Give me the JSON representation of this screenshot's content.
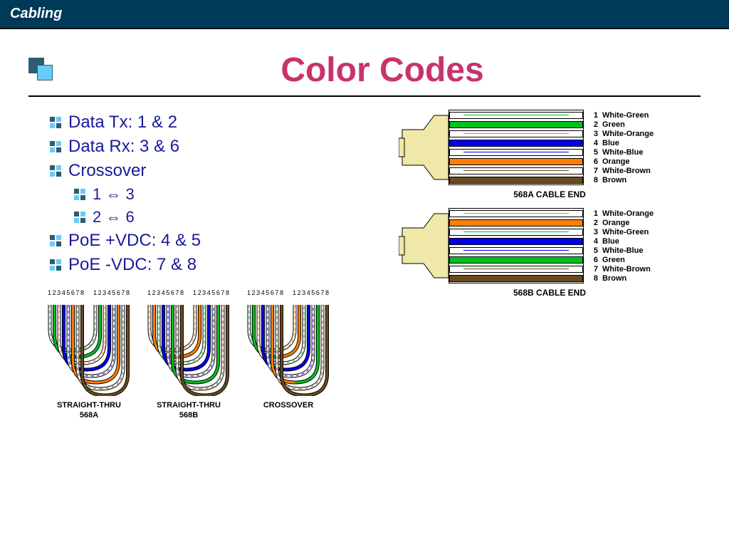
{
  "header": {
    "title": "Cabling",
    "bg": "#003a59",
    "fg": "#ffffff"
  },
  "title": {
    "text": "Color Codes",
    "color": "#c8336b"
  },
  "bullets": {
    "main": [
      {
        "text": "Data Tx: 1 & 2"
      },
      {
        "text": "Data Rx: 3 & 6"
      },
      {
        "text": "Crossover"
      },
      {
        "text": "PoE +VDC: 4 & 5"
      },
      {
        "text": "PoE  -VDC: 7 & 8"
      }
    ],
    "crossover_sub": [
      {
        "text": "1 ⇔ 3"
      },
      {
        "text": "2 ⇔ 6"
      }
    ],
    "text_color": "#1a1a99"
  },
  "colors": {
    "white": "#ffffff",
    "green": "#00c020",
    "orange": "#ff8000",
    "blue": "#0000ee",
    "brown": "#6b4a1f",
    "connector_body": "#f0e8a8",
    "black": "#000000"
  },
  "cable_568a": {
    "caption": "568A CABLE END",
    "wires": [
      {
        "num": "1",
        "label": "White-Green",
        "base": "#ffffff",
        "stripe": "#00c020"
      },
      {
        "num": "2",
        "label": "Green",
        "base": "#00c020"
      },
      {
        "num": "3",
        "label": "White-Orange",
        "base": "#ffffff",
        "stripe": "#ff8000"
      },
      {
        "num": "4",
        "label": "Blue",
        "base": "#0000ee"
      },
      {
        "num": "5",
        "label": "White-Blue",
        "base": "#ffffff",
        "stripe": "#0000ee"
      },
      {
        "num": "6",
        "label": "Orange",
        "base": "#ff8000"
      },
      {
        "num": "7",
        "label": "White-Brown",
        "base": "#ffffff",
        "stripe": "#6b4a1f"
      },
      {
        "num": "8",
        "label": "Brown",
        "base": "#6b4a1f"
      }
    ]
  },
  "cable_568b": {
    "caption": "568B CABLE END",
    "wires": [
      {
        "num": "1",
        "label": "White-Orange",
        "base": "#ffffff",
        "stripe": "#ff8000"
      },
      {
        "num": "2",
        "label": "Orange",
        "base": "#ff8000"
      },
      {
        "num": "3",
        "label": "White-Green",
        "base": "#ffffff",
        "stripe": "#00c020"
      },
      {
        "num": "4",
        "label": "Blue",
        "base": "#0000ee"
      },
      {
        "num": "5",
        "label": "White-Blue",
        "base": "#ffffff",
        "stripe": "#0000ee"
      },
      {
        "num": "6",
        "label": "Green",
        "base": "#00c020"
      },
      {
        "num": "7",
        "label": "White-Brown",
        "base": "#ffffff",
        "stripe": "#6b4a1f"
      },
      {
        "num": "8",
        "label": "Brown",
        "base": "#6b4a1f"
      }
    ]
  },
  "cable_types": {
    "num_header": "12345678",
    "items": [
      {
        "label1": "STRAIGHT-THRU",
        "label2": "568A",
        "left_order": [
          0,
          1,
          2,
          3,
          4,
          5,
          6,
          7
        ],
        "right_order": [
          0,
          1,
          2,
          3,
          4,
          5,
          6,
          7
        ],
        "scheme": "a"
      },
      {
        "label1": "STRAIGHT-THRU",
        "label2": "568B",
        "left_order": [
          0,
          1,
          2,
          3,
          4,
          5,
          6,
          7
        ],
        "right_order": [
          0,
          1,
          2,
          3,
          4,
          5,
          6,
          7
        ],
        "scheme": "b"
      },
      {
        "label1": "CROSSOVER",
        "label2": "",
        "left_order": [
          0,
          1,
          2,
          3,
          4,
          5,
          6,
          7
        ],
        "right_order": [
          0,
          1,
          2,
          3,
          4,
          5,
          6,
          7
        ],
        "scheme": "cross"
      }
    ],
    "wire_colors_a": [
      "#ffffff",
      "#00c020",
      "#ffffff",
      "#0000ee",
      "#ffffff",
      "#ff8000",
      "#ffffff",
      "#6b4a1f"
    ],
    "wire_stripes_a": [
      "#00c020",
      null,
      "#ff8000",
      null,
      "#0000ee",
      null,
      "#6b4a1f",
      null
    ],
    "wire_colors_b": [
      "#ffffff",
      "#ff8000",
      "#ffffff",
      "#0000ee",
      "#ffffff",
      "#00c020",
      "#ffffff",
      "#6b4a1f"
    ],
    "wire_stripes_b": [
      "#ff8000",
      null,
      "#00c020",
      null,
      "#0000ee",
      null,
      "#6b4a1f",
      null
    ]
  }
}
